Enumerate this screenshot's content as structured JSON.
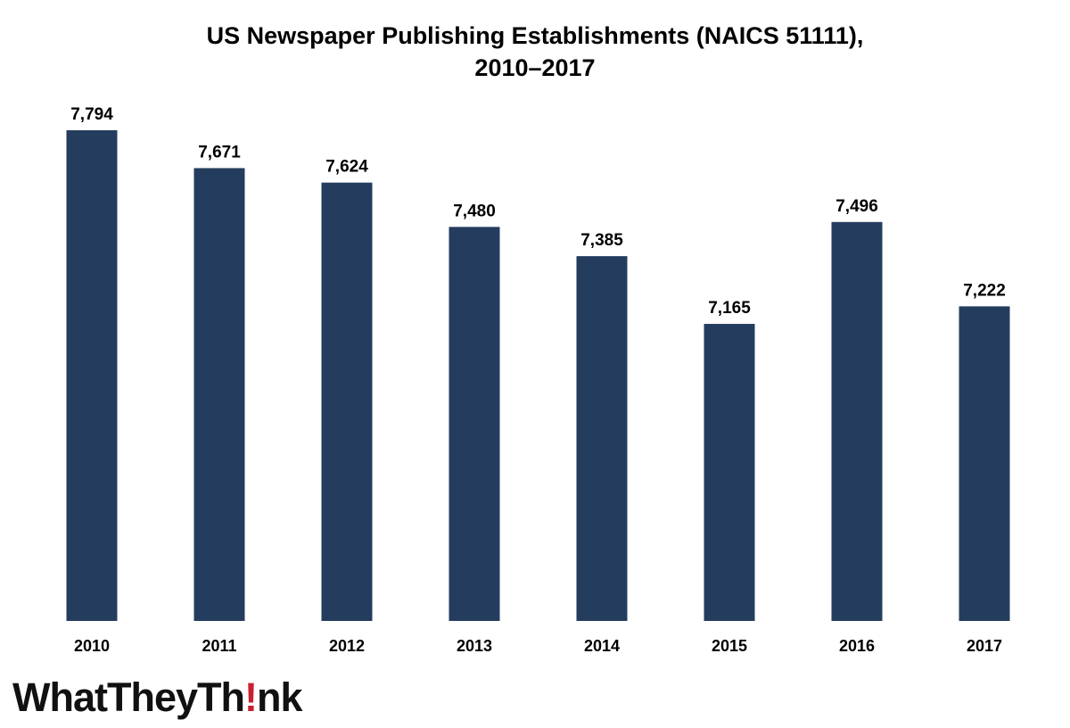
{
  "chart_data": {
    "type": "bar",
    "title_lines": [
      "US Newspaper Publishing Establishments (NAICS 51111),",
      "2010–2017"
    ],
    "categories": [
      "2010",
      "2011",
      "2012",
      "2013",
      "2014",
      "2015",
      "2016",
      "2017"
    ],
    "values": [
      7794,
      7671,
      7624,
      7480,
      7385,
      7165,
      7496,
      7222
    ],
    "value_labels": [
      "7,794",
      "7,671",
      "7,624",
      "7,480",
      "7,385",
      "7,165",
      "7,496",
      "7,222"
    ],
    "xlabel": "",
    "ylabel": "",
    "ylim": [
      6200,
      7794
    ],
    "grid": false,
    "legend": "none",
    "bar_color": "#243d5e",
    "y_axis_visible": false
  },
  "logo": {
    "text_before": "WhatTheyTh",
    "text_mark": "!",
    "text_after": "nk",
    "mark_color": "#c8202f"
  }
}
